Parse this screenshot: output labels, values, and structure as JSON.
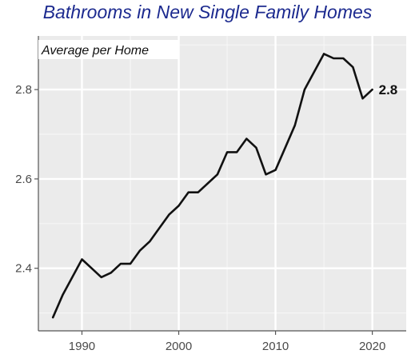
{
  "chart_data": {
    "type": "line",
    "title": "Bathrooms in New Single Family Homes",
    "subtitle": "Average per Home",
    "xlabel": "",
    "ylabel": "",
    "xlim": [
      1985.5,
      2023.5
    ],
    "ylim": [
      2.26,
      2.92
    ],
    "x_ticks": [
      1990,
      2000,
      2010,
      2020
    ],
    "y_ticks": [
      2.4,
      2.6,
      2.8
    ],
    "x_tick_labels": [
      "1990",
      "2000",
      "2010",
      "2020"
    ],
    "y_tick_labels": [
      "2.4",
      "2.6",
      "2.8"
    ],
    "grid": true,
    "end_label": "2.8",
    "series": [
      {
        "color": "#111111",
        "points": [
          [
            1987,
            2.29
          ],
          [
            1988,
            2.34
          ],
          [
            1989,
            2.38
          ],
          [
            1990,
            2.42
          ],
          [
            1991,
            2.4
          ],
          [
            1992,
            2.38
          ],
          [
            1993,
            2.39
          ],
          [
            1994,
            2.41
          ],
          [
            1995,
            2.41
          ],
          [
            1996,
            2.44
          ],
          [
            1997,
            2.46
          ],
          [
            1998,
            2.49
          ],
          [
            1999,
            2.52
          ],
          [
            2000,
            2.54
          ],
          [
            2001,
            2.57
          ],
          [
            2002,
            2.57
          ],
          [
            2003,
            2.59
          ],
          [
            2004,
            2.61
          ],
          [
            2005,
            2.66
          ],
          [
            2006,
            2.66
          ],
          [
            2007,
            2.69
          ],
          [
            2008,
            2.67
          ],
          [
            2009,
            2.61
          ],
          [
            2010,
            2.62
          ],
          [
            2011,
            2.67
          ],
          [
            2012,
            2.72
          ],
          [
            2013,
            2.8
          ],
          [
            2014,
            2.84
          ],
          [
            2015,
            2.88
          ],
          [
            2016,
            2.87
          ],
          [
            2017,
            2.87
          ],
          [
            2018,
            2.85
          ],
          [
            2019,
            2.78
          ],
          [
            2020,
            2.8
          ]
        ]
      }
    ]
  }
}
